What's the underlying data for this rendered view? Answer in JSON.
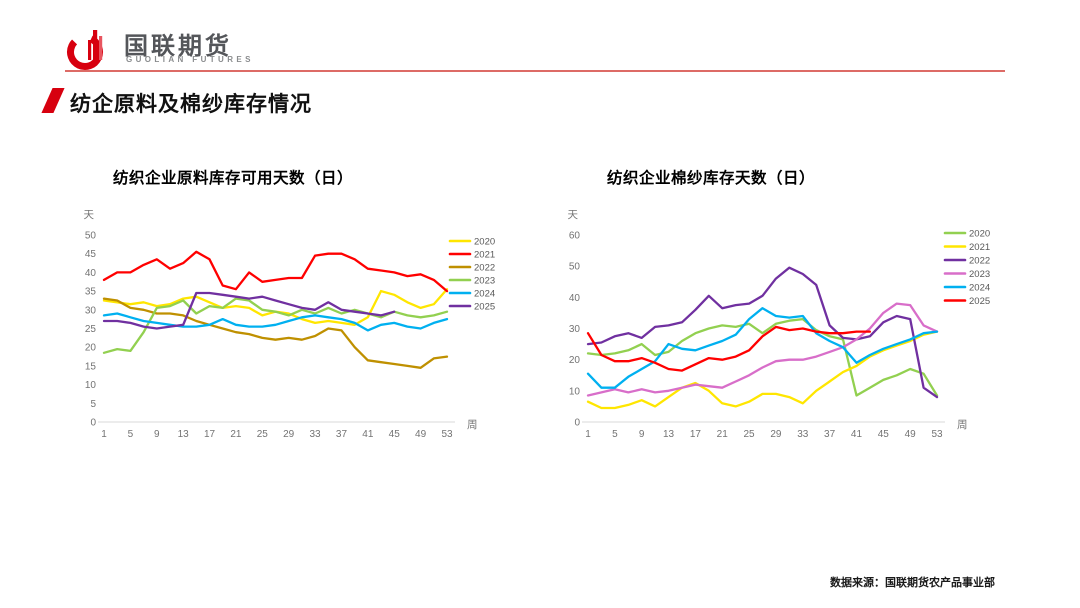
{
  "header": {
    "brand_cn": "国联期货",
    "brand_en": "GUOLIAN FUTURES",
    "accent_color": "#d7000f",
    "rule_color": "#dd6b66"
  },
  "title": {
    "text": "纺企原料及棉纱库存情况"
  },
  "footer": {
    "source": "数据来源：国联期货农产品事业部"
  },
  "icons": {
    "logo": "guolian-logo-icon",
    "title_marker": "red-slash-icon"
  },
  "chart_data": [
    {
      "type": "line",
      "title": "纺织企业原料库存可用天数（日）",
      "ylabel": "天",
      "xlabel": "周",
      "ylim": [
        0,
        50
      ],
      "xlim": [
        1,
        53
      ],
      "yticks": [
        0,
        5,
        10,
        15,
        20,
        25,
        30,
        35,
        40,
        45,
        50
      ],
      "xticks": [
        1,
        5,
        9,
        13,
        17,
        21,
        25,
        29,
        33,
        37,
        41,
        45,
        49,
        53
      ],
      "grid": false,
      "legend_position": "right",
      "x": [
        1,
        3,
        5,
        7,
        9,
        11,
        13,
        15,
        17,
        19,
        21,
        23,
        25,
        27,
        29,
        31,
        33,
        35,
        37,
        39,
        41,
        43,
        45,
        47,
        49,
        51,
        53
      ],
      "series": [
        {
          "name": "2020",
          "color": "#FFE600",
          "values": [
            32.5,
            32,
            31.5,
            32,
            31,
            31.5,
            33,
            33.5,
            32,
            30.5,
            31,
            30.5,
            28.5,
            29.5,
            29,
            27.5,
            26.5,
            27,
            26.5,
            26,
            28,
            35,
            34,
            32,
            30.5,
            31.5,
            35.5
          ]
        },
        {
          "name": "2021",
          "color": "#FF0000",
          "values": [
            38,
            40,
            40,
            42,
            43.5,
            41,
            42.5,
            45.5,
            43.5,
            36.5,
            35.5,
            40,
            37.5,
            38,
            38.5,
            38.5,
            44.5,
            45,
            45,
            43.5,
            41,
            40.5,
            40,
            39,
            39.5,
            38,
            35
          ]
        },
        {
          "name": "2022",
          "color": "#BF9000",
          "values": [
            33,
            32.5,
            30.5,
            30,
            29,
            29,
            28.5,
            27,
            26,
            25,
            24,
            23.5,
            22.5,
            22,
            22.5,
            22,
            23,
            25,
            24.5,
            20,
            16.5,
            16,
            15.5,
            15,
            14.5,
            17,
            17.5
          ]
        },
        {
          "name": "2023",
          "color": "#92D050",
          "values": [
            18.5,
            19.5,
            19,
            24,
            30.5,
            31,
            32.5,
            29,
            31,
            30.5,
            33,
            32.5,
            30,
            29.5,
            28.5,
            30,
            29,
            30.5,
            29,
            30,
            29,
            28,
            29.5,
            28.5,
            28,
            28.5,
            29.5
          ]
        },
        {
          "name": "2024",
          "color": "#00B0F0",
          "values": [
            28.5,
            29,
            28,
            27,
            26.5,
            26,
            25.5,
            25.5,
            26,
            27.5,
            26,
            25.5,
            25.5,
            26,
            27,
            28,
            28.5,
            28,
            27.5,
            26.5,
            24.5,
            26,
            26.5,
            25.5,
            25,
            26.5,
            27.5
          ]
        },
        {
          "name": "2025",
          "color": "#7030A0",
          "values": [
            27,
            27,
            26.5,
            25.5,
            25,
            25.5,
            26,
            34.5,
            34.5,
            34,
            33.5,
            33,
            33.5,
            32.5,
            31.5,
            30.5,
            30,
            32,
            30,
            29.5,
            29,
            28.5,
            29.5
          ]
        }
      ]
    },
    {
      "type": "line",
      "title": "纺织企业棉纱库存天数（日）",
      "ylabel": "天",
      "xlabel": "周",
      "ylim": [
        0,
        60
      ],
      "xlim": [
        1,
        53
      ],
      "yticks": [
        0,
        10,
        20,
        30,
        40,
        50,
        60
      ],
      "xticks": [
        1,
        5,
        9,
        13,
        17,
        21,
        25,
        29,
        33,
        37,
        41,
        45,
        49,
        53
      ],
      "grid": false,
      "legend_position": "right",
      "x": [
        1,
        3,
        5,
        7,
        9,
        11,
        13,
        15,
        17,
        19,
        21,
        23,
        25,
        27,
        29,
        31,
        33,
        35,
        37,
        39,
        41,
        43,
        45,
        47,
        49,
        51,
        53
      ],
      "series": [
        {
          "name": "2020",
          "color": "#92D050",
          "values": [
            22,
            21.5,
            22,
            23,
            25,
            21.5,
            22.5,
            26,
            28.5,
            30,
            31,
            30.5,
            31.5,
            28.5,
            31.5,
            32.5,
            33,
            29.5,
            27.5,
            26.5,
            8.5,
            11,
            13.5,
            15,
            17,
            15.5,
            8.5
          ]
        },
        {
          "name": "2021",
          "color": "#FFE600",
          "values": [
            6.5,
            4.5,
            4.5,
            5.5,
            7,
            5,
            8,
            11,
            12.5,
            10,
            6,
            5,
            6.5,
            9,
            9,
            8,
            6,
            10,
            13,
            16,
            18,
            21,
            23,
            24.5,
            26,
            28,
            29
          ]
        },
        {
          "name": "2022",
          "color": "#7030A0",
          "values": [
            25,
            25.5,
            27.5,
            28.5,
            27,
            30.5,
            31,
            32,
            36,
            40.5,
            36.5,
            37.5,
            38,
            40.5,
            46,
            49.5,
            47.5,
            44,
            31,
            27,
            26.5,
            27.5,
            32,
            34,
            33,
            11,
            8
          ]
        },
        {
          "name": "2023",
          "color": "#D86EC9",
          "values": [
            8.5,
            9.5,
            10.5,
            9.5,
            10.5,
            9.5,
            10,
            11,
            12,
            11.5,
            11,
            13,
            15,
            17.5,
            19.5,
            20,
            20,
            21,
            22.5,
            24,
            26.5,
            30,
            35,
            38,
            37.5,
            31,
            29
          ]
        },
        {
          "name": "2024",
          "color": "#00B0F0",
          "values": [
            15.5,
            11,
            11,
            14.5,
            17,
            19.5,
            25,
            23.5,
            23,
            24.5,
            26,
            28,
            33,
            36.5,
            34,
            33.5,
            34,
            28.5,
            26,
            24,
            19,
            21.5,
            23.5,
            25,
            26.5,
            28.5,
            29
          ]
        },
        {
          "name": "2025",
          "color": "#FF0000",
          "values": [
            28.5,
            21.5,
            19.5,
            19.5,
            20.5,
            19,
            17,
            16.5,
            18.5,
            20.5,
            20,
            21,
            23,
            27.5,
            30.5,
            29.5,
            30,
            29,
            28.5,
            28.5,
            29,
            29
          ]
        }
      ]
    }
  ]
}
